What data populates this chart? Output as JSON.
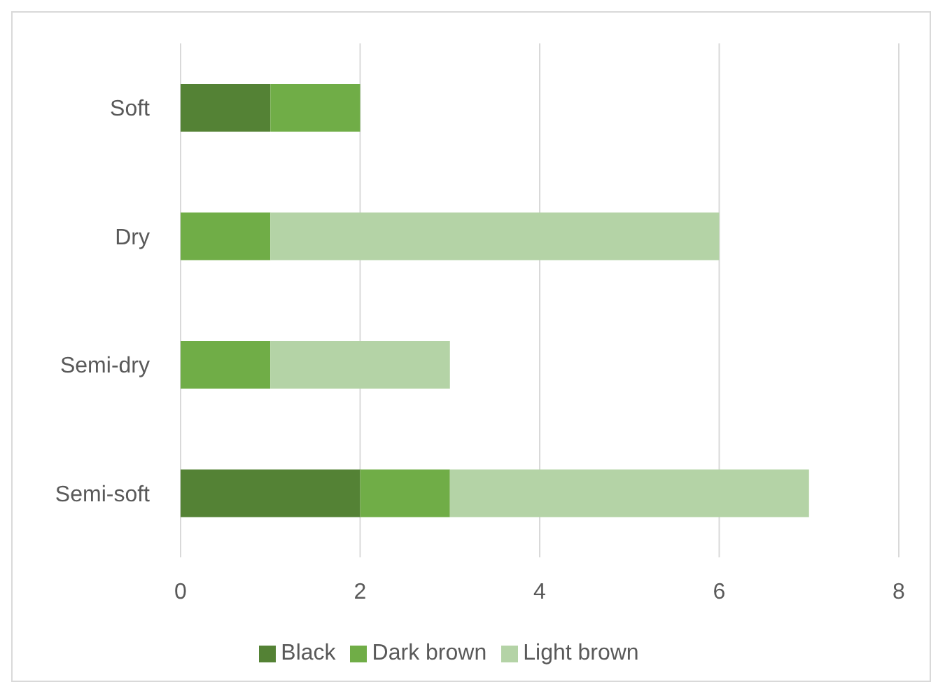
{
  "chart_data": {
    "type": "bar",
    "orientation": "horizontal",
    "stacked": true,
    "categories": [
      "Soft",
      "Dry",
      "Semi-dry",
      "Semi-soft"
    ],
    "series": [
      {
        "name": "Black",
        "color": "#548235",
        "values": [
          1,
          0,
          0,
          2
        ]
      },
      {
        "name": "Dark brown",
        "color": "#70ad47",
        "values": [
          1,
          1,
          1,
          1
        ]
      },
      {
        "name": "Light brown",
        "color": "#b4d3a6",
        "values": [
          0,
          5,
          2,
          4
        ]
      }
    ],
    "xlim": [
      0,
      8
    ],
    "xticks": [
      0,
      2,
      4,
      6,
      8
    ],
    "grid": "x",
    "legend": "bottom"
  }
}
